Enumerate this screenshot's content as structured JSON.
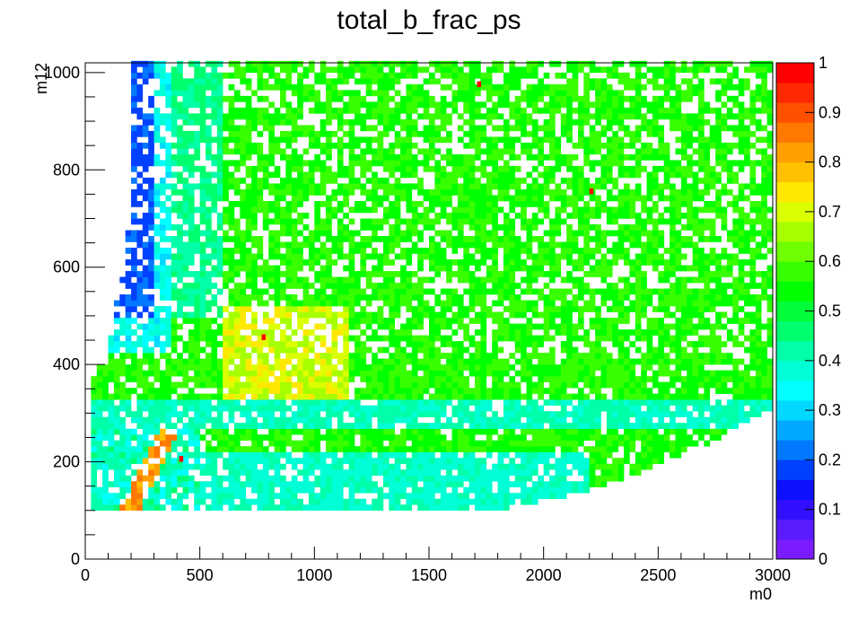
{
  "chart_data": {
    "type": "heatmap",
    "title": "total_b_frac_ps",
    "xlabel": "m0",
    "ylabel": "m12",
    "xlim": [
      0,
      3000
    ],
    "ylim": [
      0,
      1020
    ],
    "x_ticks": [
      "0",
      "500",
      "1000",
      "1500",
      "2000",
      "2500",
      "3000"
    ],
    "y_ticks": [
      "0",
      "200",
      "400",
      "600",
      "800",
      "1000"
    ],
    "colorbar": {
      "range": [
        0,
        1
      ],
      "ticks": [
        "0",
        "0.1",
        "0.2",
        "0.3",
        "0.4",
        "0.5",
        "0.6",
        "0.7",
        "0.8",
        "0.9",
        "1"
      ],
      "colors": [
        "#7a1cff",
        "#5a1cff",
        "#3210ff",
        "#0c10ff",
        "#0040ff",
        "#0078ff",
        "#00a8ff",
        "#00d8ff",
        "#00ffff",
        "#00ffd6",
        "#00ffa8",
        "#00ff6e",
        "#00ff38",
        "#00ff00",
        "#38ff00",
        "#70ff00",
        "#a6ff00",
        "#dcff00",
        "#ffe800",
        "#ffc000",
        "#ffa000",
        "#ff7800",
        "#ff5000",
        "#ff2800",
        "#ff0000"
      ]
    },
    "value_regions": [
      {
        "region": "m0 < 250, m12 > 700",
        "approx_value": 0.18
      },
      {
        "region": "m0 250-500, m12 > 600",
        "approx_value": 0.4
      },
      {
        "region": "m0 > 550, m12 > 450",
        "approx_value": 0.56
      },
      {
        "region": "m0 600-1100, m12 350-500",
        "approx_value": 0.7
      },
      {
        "region": "m0 200-400, m12 130-300 (diagonal streak)",
        "approx_value": 0.85
      },
      {
        "region": "m12 280-320 band",
        "approx_value": 0.4
      },
      {
        "region": "m0 > 2500, m12 < 350",
        "approx_value": 0.56
      },
      {
        "region": "m12 100-200, m0 500-2000",
        "approx_value": 0.38
      }
    ],
    "red_cells": [
      [
        1710,
        970
      ],
      [
        2200,
        750
      ],
      [
        770,
        450
      ],
      [
        410,
        200
      ]
    ]
  }
}
